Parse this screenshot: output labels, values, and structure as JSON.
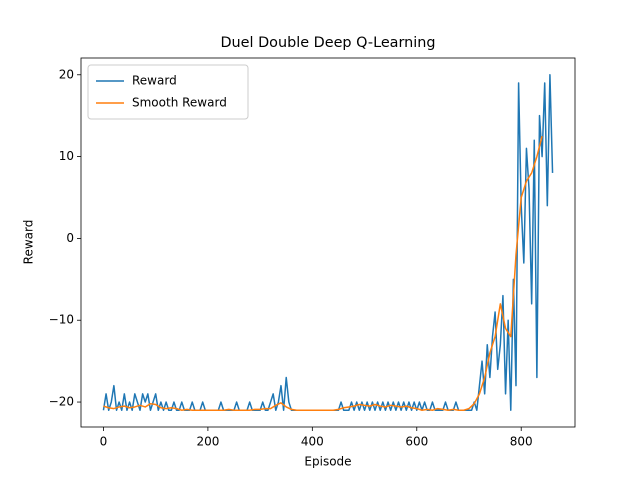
{
  "chart_data": {
    "type": "line",
    "title": "Duel Double Deep Q-Learning",
    "xlabel": "Episode",
    "ylabel": "Reward",
    "xlim": [
      -43,
      903
    ],
    "ylim": [
      -23.05,
      22.05
    ],
    "xticks": [
      0,
      200,
      400,
      600,
      800
    ],
    "yticks": [
      {
        "value": -20,
        "label": "−20"
      },
      {
        "value": -10,
        "label": "−10"
      },
      0,
      10,
      20
    ],
    "legend": "upper left",
    "series": [
      {
        "name": "Reward",
        "color": "#1f77b4",
        "x": [
          0,
          5,
          10,
          15,
          20,
          25,
          30,
          35,
          40,
          45,
          50,
          55,
          60,
          65,
          70,
          75,
          80,
          85,
          90,
          95,
          100,
          105,
          110,
          115,
          120,
          125,
          130,
          135,
          140,
          145,
          150,
          155,
          160,
          165,
          170,
          175,
          180,
          185,
          190,
          195,
          200,
          205,
          210,
          215,
          220,
          225,
          230,
          235,
          240,
          245,
          250,
          255,
          260,
          265,
          270,
          275,
          280,
          285,
          290,
          295,
          300,
          305,
          310,
          315,
          320,
          325,
          330,
          335,
          340,
          345,
          350,
          355,
          360,
          365,
          370,
          375,
          380,
          385,
          390,
          395,
          400,
          405,
          410,
          415,
          420,
          425,
          430,
          435,
          440,
          445,
          450,
          455,
          460,
          465,
          470,
          475,
          480,
          485,
          490,
          495,
          500,
          505,
          510,
          515,
          520,
          525,
          530,
          535,
          540,
          545,
          550,
          555,
          560,
          565,
          570,
          575,
          580,
          585,
          590,
          595,
          600,
          605,
          610,
          615,
          620,
          625,
          630,
          635,
          640,
          645,
          650,
          655,
          660,
          665,
          670,
          675,
          680,
          685,
          690,
          695,
          700,
          705,
          710,
          715,
          720,
          725,
          730,
          735,
          740,
          745,
          750,
          755,
          760,
          765,
          770,
          775,
          780,
          785,
          790,
          795,
          800,
          805,
          810,
          815,
          820,
          825,
          830,
          835,
          840,
          845,
          850,
          855,
          860
        ],
        "values": [
          -21,
          -19,
          -21,
          -20,
          -18,
          -21,
          -20,
          -21,
          -19,
          -21,
          -20,
          -21,
          -19,
          -20,
          -21,
          -19,
          -20,
          -19,
          -21,
          -20,
          -19,
          -21,
          -20,
          -21,
          -20,
          -21,
          -21,
          -20,
          -21,
          -21,
          -20,
          -21,
          -21,
          -21,
          -20,
          -21,
          -21,
          -21,
          -20,
          -21,
          -21,
          -21,
          -21,
          -21,
          -21,
          -20,
          -21,
          -21,
          -21,
          -21,
          -21,
          -20,
          -21,
          -21,
          -21,
          -21,
          -20,
          -21,
          -21,
          -21,
          -21,
          -20,
          -21,
          -21,
          -20,
          -19,
          -21,
          -20,
          -18,
          -21,
          -17,
          -20,
          -21,
          -21,
          -21,
          -21,
          -21,
          -21,
          -21,
          -21,
          -21,
          -21,
          -21,
          -21,
          -21,
          -21,
          -21,
          -21,
          -21,
          -21,
          -21,
          -20,
          -21,
          -21,
          -21,
          -20,
          -21,
          -20,
          -21,
          -20,
          -21,
          -20,
          -21,
          -20,
          -21,
          -20,
          -21,
          -20,
          -21,
          -20,
          -21,
          -20,
          -21,
          -20,
          -21,
          -20,
          -21,
          -20,
          -21,
          -20,
          -21,
          -20,
          -21,
          -20,
          -21,
          -21,
          -20,
          -21,
          -21,
          -21,
          -21,
          -20,
          -21,
          -21,
          -21,
          -20,
          -21,
          -21,
          -21,
          -21,
          -21,
          -21,
          -20,
          -21,
          -18,
          -15,
          -19,
          -13,
          -17,
          -12,
          -9,
          -16,
          -13,
          -7,
          -19,
          -10,
          -21,
          -5,
          -18,
          19,
          4,
          -3,
          11,
          6,
          -8,
          12,
          -17,
          15,
          10,
          19,
          4,
          20,
          8
        ]
      },
      {
        "name": "Smooth Reward",
        "color": "#ff7f0e",
        "x": [
          0,
          10,
          20,
          30,
          40,
          50,
          60,
          70,
          80,
          90,
          100,
          110,
          120,
          130,
          140,
          150,
          160,
          170,
          180,
          190,
          200,
          210,
          220,
          230,
          240,
          250,
          260,
          270,
          280,
          290,
          300,
          310,
          320,
          330,
          340,
          350,
          360,
          370,
          380,
          390,
          400,
          410,
          420,
          430,
          440,
          450,
          460,
          470,
          480,
          490,
          500,
          510,
          520,
          530,
          540,
          550,
          560,
          570,
          580,
          590,
          600,
          610,
          620,
          630,
          640,
          650,
          660,
          670,
          680,
          690,
          700,
          710,
          720,
          730,
          740,
          750,
          760,
          770,
          780,
          790,
          800,
          810,
          820,
          830,
          840
        ],
        "values": [
          -20.5,
          -20.7,
          -20.8,
          -20.6,
          -20.5,
          -20.7,
          -20.6,
          -20.4,
          -20.6,
          -20.2,
          -20.3,
          -20.7,
          -20.8,
          -20.7,
          -20.8,
          -21,
          -20.9,
          -21,
          -21,
          -21,
          -21,
          -21,
          -21,
          -21,
          -20.9,
          -21,
          -21,
          -21,
          -21,
          -20.9,
          -20.9,
          -20.8,
          -20.8,
          -20.4,
          -20.1,
          -20.6,
          -20.9,
          -21,
          -21,
          -21,
          -21,
          -21,
          -21,
          -21,
          -21,
          -20.9,
          -20.7,
          -20.6,
          -20.5,
          -20.3,
          -20.4,
          -20.5,
          -20.3,
          -20.5,
          -20.6,
          -20.4,
          -20.5,
          -20.6,
          -20.5,
          -20.7,
          -20.8,
          -21,
          -20.9,
          -21,
          -20.8,
          -20.9,
          -21,
          -20.9,
          -21,
          -21,
          -20.8,
          -20.2,
          -19,
          -17,
          -14,
          -12,
          -8,
          -11,
          -12,
          -2,
          5,
          7,
          8,
          10,
          12.5
        ]
      }
    ]
  }
}
